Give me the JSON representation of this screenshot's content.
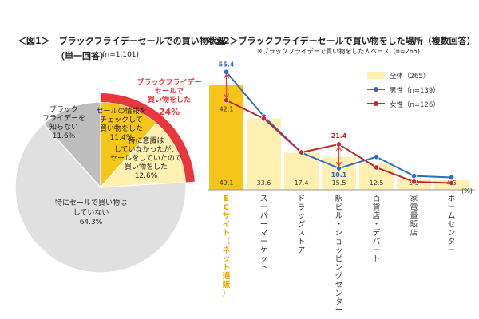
{
  "fig1": {
    "title": "＜図1＞　ブラックフライデーセールでの買い物状況",
    "subtitle": "（単一回答）",
    "n": "(n=1,101)"
  },
  "fig2": {
    "title": "＜図2＞ブラックフライデーセールで買い物をした場所（複数回答）",
    "note": "※ブラックフライデーで買い物をした人ベース（n=265)",
    "unit": "(%)"
  },
  "chart_data": [
    {
      "type": "pie",
      "title": "＜図1＞　ブラックフライデーセールでの買い物状況",
      "slices": [
        {
          "label": "セールの情報を チェックして 買い物をした",
          "value": 11.4,
          "display": "11.4%",
          "color": "#f5c518"
        },
        {
          "label": "特に意識は していなかったが、 セールをしていたので 買い物をした",
          "value": 12.6,
          "display": "12.6%",
          "color": "#fdf0b0"
        },
        {
          "label": "特にセールで買い物は していない",
          "value": 64.3,
          "display": "64.3%",
          "color": "#e0e0e0"
        },
        {
          "label": "ブラック フライデーを 知らない",
          "value": 11.6,
          "display": "11.6%",
          "color": "#bdbdbd"
        }
      ],
      "highlight": {
        "label": "ブラックフライデー セールで 買い物をした",
        "value": "24%",
        "color": "#e8383d"
      }
    },
    {
      "type": "bar",
      "title": "＜図2＞ブラックフライデーセールで買い物をした場所（複数回答）",
      "categories": [
        "ECサイト（ネット通販）",
        "スーパーマーケット",
        "ドラッグストア",
        "駅ビル・ショッピングセンター",
        "百貨店・デパート",
        "家電量販店",
        "ホームセンター"
      ],
      "series": [
        {
          "name": "全体（265）",
          "type": "bar",
          "color": "#fdf0b0",
          "values": [
            49.1,
            33.6,
            17.4,
            15.5,
            12.5,
            5.3,
            4.5
          ]
        },
        {
          "name": "男性（n=139）",
          "type": "line",
          "color": "#2e6bc4",
          "values": [
            55.4,
            34.5,
            17.5,
            10.1,
            15.5,
            6.5,
            5.8
          ]
        },
        {
          "name": "女性（n=126）",
          "type": "line",
          "color": "#c0282e",
          "values": [
            42.1,
            33.5,
            17.6,
            21.4,
            10.5,
            3.8,
            3.2
          ]
        }
      ],
      "labels": {
        "male_first": "55.4",
        "female_first": "42.1",
        "female_peak": "21.4",
        "male_low": "10.1"
      },
      "ylim": [
        0,
        60
      ],
      "unit": "(%)",
      "highlight_color": "#f5c518"
    }
  ]
}
